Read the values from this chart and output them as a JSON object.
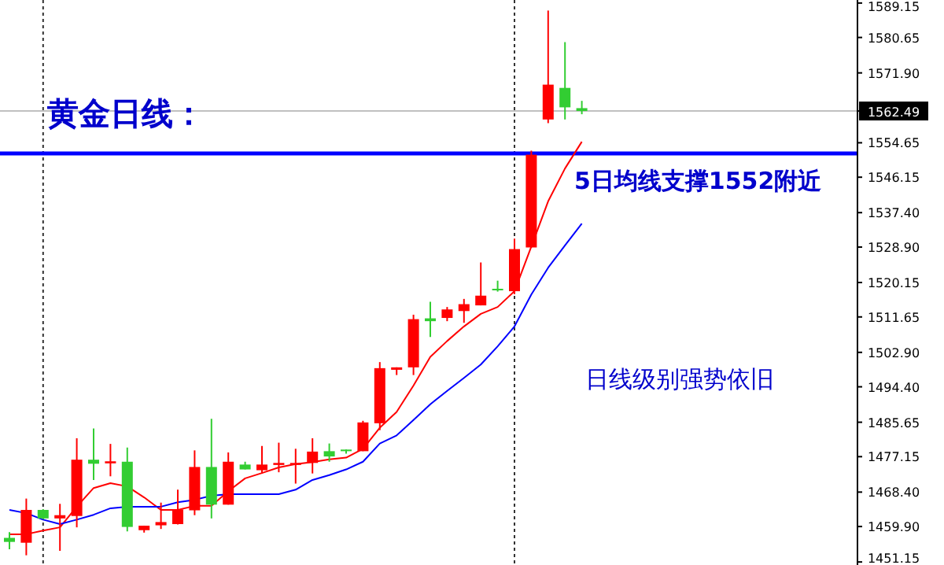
{
  "chart_data": {
    "type": "candlestick",
    "title": "黄金日线：",
    "annotations": [
      "5日均线支撑1552附近",
      "日线级别强势依旧"
    ],
    "categories": [
      null,
      null,
      null,
      null,
      null,
      null,
      null,
      null,
      null,
      null,
      null,
      null,
      null,
      null,
      null,
      null,
      null,
      null,
      null,
      null,
      null,
      null,
      null,
      null,
      null,
      null,
      null,
      null,
      null,
      null,
      null,
      null,
      null,
      null,
      null
    ],
    "ohlc": [
      [
        1457.1,
        1458.5,
        1454.3,
        1456.1
      ],
      [
        1455.9,
        1466.8,
        1452.8,
        1464.0
      ],
      [
        1464.0,
        1464.2,
        1461.7,
        1461.9
      ],
      [
        1461.9,
        1465.5,
        1453.9,
        1462.7
      ],
      [
        1462.5,
        1481.7,
        1459.7,
        1476.4
      ],
      [
        1476.4,
        1484.1,
        1471.4,
        1475.4
      ],
      [
        1475.5,
        1480.3,
        1472.3,
        1476.0
      ],
      [
        1475.9,
        1479.4,
        1458.7,
        1459.8
      ],
      [
        1459.0,
        1460.1,
        1458.4,
        1460.1
      ],
      [
        1460.2,
        1465.8,
        1459.3,
        1461.0
      ],
      [
        1460.5,
        1469.0,
        1460.4,
        1464.1
      ],
      [
        1463.9,
        1478.7,
        1462.7,
        1474.6
      ],
      [
        1474.6,
        1486.5,
        1461.9,
        1465.3
      ],
      [
        1465.3,
        1478.2,
        1465.3,
        1475.9
      ],
      [
        1475.2,
        1475.9,
        1474.0,
        1474.0
      ],
      [
        1473.8,
        1479.8,
        1473.0,
        1475.2
      ],
      [
        1475.1,
        1480.6,
        1473.3,
        1475.6
      ],
      [
        1475.1,
        1479.1,
        1470.5,
        1475.6
      ],
      [
        1475.6,
        1481.7,
        1473.0,
        1478.4
      ],
      [
        1478.5,
        1480.4,
        1475.9,
        1477.2
      ],
      [
        1478.9,
        1478.9,
        1477.9,
        1478.5
      ],
      [
        1478.5,
        1486.0,
        1478.5,
        1485.6
      ],
      [
        1485.4,
        1500.5,
        1483.7,
        1499.0
      ],
      [
        1498.6,
        1499.2,
        1497.3,
        1499.2
      ],
      [
        1499.2,
        1512.2,
        1497.3,
        1511.1
      ],
      [
        1511.3,
        1515.4,
        1506.7,
        1510.6
      ],
      [
        1511.4,
        1514.1,
        1510.6,
        1513.5
      ],
      [
        1513.1,
        1516.1,
        1510.2,
        1514.8
      ],
      [
        1514.5,
        1525.1,
        1514.5,
        1516.9
      ],
      [
        1518.6,
        1520.6,
        1517.9,
        1518.3
      ],
      [
        1518.0,
        1531.0,
        1517.3,
        1528.4
      ],
      [
        1528.8,
        1552.7,
        1528.8,
        1551.7
      ],
      [
        1560.4,
        1587.3,
        1559.5,
        1569.0
      ],
      [
        1568.2,
        1579.5,
        1560.4,
        1563.4
      ],
      [
        1563.2,
        1565.0,
        1561.7,
        1562.5
      ]
    ],
    "series": [
      {
        "type": "line",
        "color": "#ff0000",
        "values": [
          1458.0,
          1458.0,
          1458.9,
          1459.7,
          1464.8,
          1469.4,
          1470.6,
          1469.8,
          1467.1,
          1464.0,
          1464.0,
          1465.0,
          1465.0,
          1468.6,
          1471.8,
          1473.1,
          1474.5,
          1475.3,
          1475.8,
          1476.5,
          1476.9,
          1479.1,
          1484.3,
          1488.2,
          1494.7,
          1501.8,
          1505.7,
          1509.3,
          1512.4,
          1514.1,
          1518.0,
          1529.0,
          1540.2,
          1548.3,
          1554.9
        ]
      },
      {
        "type": "line",
        "color": "#0000ff",
        "values": [
          1464.0,
          1463.2,
          1461.6,
          1460.5,
          1461.6,
          1462.8,
          1464.4,
          1464.8,
          1464.8,
          1464.8,
          1465.9,
          1466.5,
          1467.5,
          1467.9,
          1467.9,
          1467.9,
          1467.9,
          1469.0,
          1471.4,
          1472.6,
          1474.0,
          1475.9,
          1480.4,
          1482.4,
          1486.2,
          1490.1,
          1493.4,
          1496.6,
          1499.9,
          1504.4,
          1509.3,
          1517.2,
          1523.8,
          1529.3,
          1534.7
        ]
      }
    ],
    "ylim": [
      1450.4,
      1589.9
    ],
    "yticks": [
      1451.15,
      {
        "value": 1459.9,
        "label": "1459.90"
      },
      {
        "value": 1468.4,
        "label": "1468.40"
      },
      1477.15,
      1485.65,
      {
        "value": 1494.4,
        "label": "1494.40"
      },
      {
        "value": 1502.9,
        "label": "1502.90"
      },
      1511.65,
      1520.15,
      {
        "value": 1528.9,
        "label": "1528.90"
      },
      {
        "value": 1537.4,
        "label": "1537.40"
      },
      1546.15,
      1554.65,
      1562.49,
      {
        "value": 1571.9,
        "label": "1571.90"
      },
      1580.65,
      1589.15
    ],
    "ref_lines": [
      {
        "axis": "y",
        "value": 1562.49,
        "label": "1562.49",
        "color": "#c0c0c0"
      },
      {
        "axis": "y",
        "value": 1552,
        "color": "#0000ff"
      }
    ]
  }
}
